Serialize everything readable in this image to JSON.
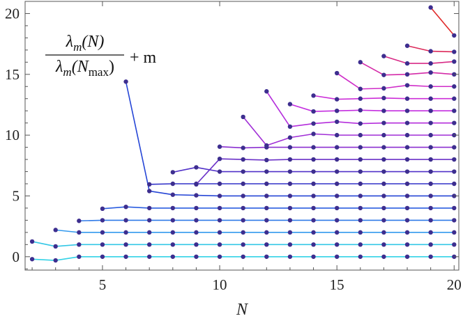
{
  "chart_data": {
    "type": "line",
    "title": "",
    "xlabel": "N",
    "ylabel": "",
    "xlim": [
      1.7,
      20.2
    ],
    "ylim": [
      -1.1,
      21.0
    ],
    "xticks": [
      5,
      10,
      15,
      20
    ],
    "yticks": [
      0,
      5,
      10,
      15,
      20
    ],
    "grid": false,
    "legend": "none",
    "annotation": {
      "lambda": "λ",
      "m": "m",
      "num_args": "(N)",
      "den_open": "(N",
      "den_sub": "max",
      "den_close": ")",
      "plus_m": "+ m"
    },
    "marker_color": "#3d2e8f",
    "series": [
      {
        "m": 0,
        "color": "#33d2e6",
        "points": [
          [
            2,
            -0.2
          ],
          [
            3,
            -0.3
          ],
          [
            4,
            0.0
          ],
          [
            5,
            0.0
          ],
          [
            6,
            0.0
          ],
          [
            7,
            0.0
          ],
          [
            8,
            0.0
          ],
          [
            9,
            0.0
          ],
          [
            10,
            0.0
          ],
          [
            11,
            0.0
          ],
          [
            12,
            0.0
          ],
          [
            13,
            0.0
          ],
          [
            14,
            0.0
          ],
          [
            15,
            0.0
          ],
          [
            16,
            0.0
          ],
          [
            17,
            0.0
          ],
          [
            18,
            0.0
          ],
          [
            19,
            0.0
          ],
          [
            20,
            0.0
          ]
        ]
      },
      {
        "m": 1,
        "color": "#33c7e6",
        "points": [
          [
            2,
            1.25
          ],
          [
            3,
            0.85
          ],
          [
            4,
            1.0
          ],
          [
            5,
            1.0
          ],
          [
            6,
            1.0
          ],
          [
            7,
            1.0
          ],
          [
            8,
            1.0
          ],
          [
            9,
            1.0
          ],
          [
            10,
            1.0
          ],
          [
            11,
            1.0
          ],
          [
            12,
            1.0
          ],
          [
            13,
            1.0
          ],
          [
            14,
            1.0
          ],
          [
            15,
            1.0
          ],
          [
            16,
            1.0
          ],
          [
            17,
            1.0
          ],
          [
            18,
            1.0
          ],
          [
            19,
            1.0
          ],
          [
            20,
            1.0
          ]
        ]
      },
      {
        "m": 2,
        "color": "#3399ee",
        "points": [
          [
            3,
            2.2
          ],
          [
            4,
            2.0
          ],
          [
            5,
            2.0
          ],
          [
            6,
            2.0
          ],
          [
            7,
            2.0
          ],
          [
            8,
            2.0
          ],
          [
            9,
            2.0
          ],
          [
            10,
            2.0
          ],
          [
            11,
            2.0
          ],
          [
            12,
            2.0
          ],
          [
            13,
            2.0
          ],
          [
            14,
            2.0
          ],
          [
            15,
            2.0
          ],
          [
            16,
            2.0
          ],
          [
            17,
            2.0
          ],
          [
            18,
            2.0
          ],
          [
            19,
            2.0
          ],
          [
            20,
            2.0
          ]
        ]
      },
      {
        "m": 3,
        "color": "#2f7ae8",
        "points": [
          [
            4,
            2.95
          ],
          [
            5,
            3.0
          ],
          [
            6,
            3.0
          ],
          [
            7,
            3.0
          ],
          [
            8,
            3.0
          ],
          [
            9,
            3.0
          ],
          [
            10,
            3.0
          ],
          [
            11,
            3.0
          ],
          [
            12,
            3.0
          ],
          [
            13,
            3.0
          ],
          [
            14,
            3.0
          ],
          [
            15,
            3.0
          ],
          [
            16,
            3.0
          ],
          [
            17,
            3.0
          ],
          [
            18,
            3.0
          ],
          [
            19,
            3.0
          ],
          [
            20,
            3.0
          ]
        ]
      },
      {
        "m": 4,
        "color": "#2a5de0",
        "points": [
          [
            5,
            3.95
          ],
          [
            6,
            4.1
          ],
          [
            7,
            4.0
          ],
          [
            8,
            4.0
          ],
          [
            9,
            4.0
          ],
          [
            10,
            4.0
          ],
          [
            11,
            4.0
          ],
          [
            12,
            4.0
          ],
          [
            13,
            4.0
          ],
          [
            14,
            4.0
          ],
          [
            15,
            4.0
          ],
          [
            16,
            4.0
          ],
          [
            17,
            4.0
          ],
          [
            18,
            4.0
          ],
          [
            19,
            4.0
          ],
          [
            20,
            4.0
          ]
        ]
      },
      {
        "m": 5,
        "color": "#2646d6",
        "points": [
          [
            6,
            14.4
          ],
          [
            7,
            5.4
          ],
          [
            8,
            5.1
          ],
          [
            9,
            5.05
          ],
          [
            10,
            5.0
          ],
          [
            11,
            5.0
          ],
          [
            12,
            5.0
          ],
          [
            13,
            5.0
          ],
          [
            14,
            5.0
          ],
          [
            15,
            5.0
          ],
          [
            16,
            5.0
          ],
          [
            17,
            5.0
          ],
          [
            18,
            5.0
          ],
          [
            19,
            5.0
          ],
          [
            20,
            5.0
          ]
        ]
      },
      {
        "m": 6,
        "color": "#3030c8",
        "points": [
          [
            7,
            5.95
          ],
          [
            8,
            6.0
          ],
          [
            9,
            6.0
          ],
          [
            10,
            6.0
          ],
          [
            11,
            6.0
          ],
          [
            12,
            6.0
          ],
          [
            13,
            6.0
          ],
          [
            14,
            6.0
          ],
          [
            15,
            6.0
          ],
          [
            16,
            6.0
          ],
          [
            17,
            6.0
          ],
          [
            18,
            6.0
          ],
          [
            19,
            6.0
          ],
          [
            20,
            6.0
          ]
        ]
      },
      {
        "m": 7,
        "color": "#5030c8",
        "points": [
          [
            8,
            6.95
          ],
          [
            9,
            7.35
          ],
          [
            10,
            7.0
          ],
          [
            11,
            7.0
          ],
          [
            12,
            7.0
          ],
          [
            13,
            7.0
          ],
          [
            14,
            7.0
          ],
          [
            15,
            7.0
          ],
          [
            16,
            7.0
          ],
          [
            17,
            7.0
          ],
          [
            18,
            7.0
          ],
          [
            19,
            7.0
          ],
          [
            20,
            7.0
          ]
        ]
      },
      {
        "m": 8,
        "color": "#6a30c8",
        "points": [
          [
            9,
            5.95
          ],
          [
            10,
            8.05
          ],
          [
            11,
            8.0
          ],
          [
            12,
            7.95
          ],
          [
            13,
            8.0
          ],
          [
            14,
            8.0
          ],
          [
            15,
            8.0
          ],
          [
            16,
            8.0
          ],
          [
            17,
            8.0
          ],
          [
            18,
            8.0
          ],
          [
            19,
            8.0
          ],
          [
            20,
            8.0
          ]
        ]
      },
      {
        "m": 9,
        "color": "#8a2fd0",
        "points": [
          [
            10,
            9.05
          ],
          [
            11,
            8.95
          ],
          [
            12,
            9.0
          ],
          [
            13,
            9.0
          ],
          [
            14,
            9.0
          ],
          [
            15,
            9.0
          ],
          [
            16,
            9.0
          ],
          [
            17,
            9.0
          ],
          [
            18,
            9.0
          ],
          [
            19,
            9.0
          ],
          [
            20,
            9.0
          ]
        ]
      },
      {
        "m": 10,
        "color": "#a02ed6",
        "points": [
          [
            11,
            11.5
          ],
          [
            12,
            9.15
          ],
          [
            13,
            9.8
          ],
          [
            14,
            10.1
          ],
          [
            15,
            10.0
          ],
          [
            16,
            10.0
          ],
          [
            17,
            10.0
          ],
          [
            18,
            10.0
          ],
          [
            19,
            10.0
          ],
          [
            20,
            10.0
          ]
        ]
      },
      {
        "m": 11,
        "color": "#b42edc",
        "points": [
          [
            12,
            13.6
          ],
          [
            13,
            10.7
          ],
          [
            14,
            10.95
          ],
          [
            15,
            11.1
          ],
          [
            16,
            10.95
          ],
          [
            17,
            11.0
          ],
          [
            18,
            11.0
          ],
          [
            19,
            11.0
          ],
          [
            20,
            11.0
          ]
        ]
      },
      {
        "m": 12,
        "color": "#c42ee0",
        "points": [
          [
            13,
            12.55
          ],
          [
            14,
            11.95
          ],
          [
            15,
            12.0
          ],
          [
            16,
            12.05
          ],
          [
            17,
            12.0
          ],
          [
            18,
            12.0
          ],
          [
            19,
            12.0
          ],
          [
            20,
            12.0
          ]
        ]
      },
      {
        "m": 13,
        "color": "#cc2ed8",
        "points": [
          [
            14,
            13.25
          ],
          [
            15,
            12.95
          ],
          [
            16,
            13.0
          ],
          [
            17,
            13.05
          ],
          [
            18,
            13.0
          ],
          [
            19,
            13.0
          ],
          [
            20,
            13.0
          ]
        ]
      },
      {
        "m": 14,
        "color": "#cf2cc8",
        "points": [
          [
            15,
            15.1
          ],
          [
            16,
            13.8
          ],
          [
            17,
            13.85
          ],
          [
            18,
            14.1
          ],
          [
            19,
            14.0
          ],
          [
            20,
            14.0
          ]
        ]
      },
      {
        "m": 15,
        "color": "#d42aa8",
        "points": [
          [
            16,
            16.0
          ],
          [
            17,
            14.95
          ],
          [
            18,
            15.0
          ],
          [
            19,
            15.15
          ],
          [
            20,
            15.0
          ]
        ]
      },
      {
        "m": 16,
        "color": "#d82a86",
        "points": [
          [
            17,
            16.5
          ],
          [
            18,
            15.9
          ],
          [
            19,
            15.9
          ],
          [
            20,
            16.05
          ]
        ]
      },
      {
        "m": 17,
        "color": "#dc2a5a",
        "points": [
          [
            18,
            17.35
          ],
          [
            19,
            16.9
          ],
          [
            20,
            16.85
          ]
        ]
      },
      {
        "m": 18,
        "color": "#e02a2a",
        "points": [
          [
            19,
            20.5
          ],
          [
            20,
            18.2
          ]
        ]
      }
    ]
  }
}
